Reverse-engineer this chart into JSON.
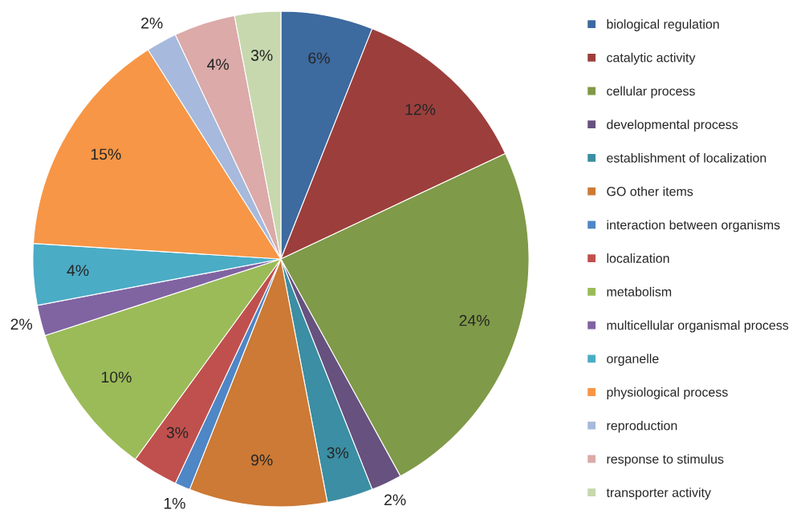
{
  "chart_data": {
    "type": "pie",
    "categories": [
      "biological regulation",
      "catalytic activity",
      "cellular process",
      "developmental process",
      "establishment of localization",
      "GO other items",
      "interaction between organisms",
      "localization",
      "metabolism",
      "multicellular organismal process",
      "organelle",
      "physiological process",
      "reproduction",
      "response to stimulus",
      "transporter activity"
    ],
    "values": [
      6,
      12,
      24,
      2,
      3,
      9,
      1,
      3,
      10,
      2,
      4,
      15,
      2,
      4,
      3
    ],
    "value_labels": [
      "6%",
      "12%",
      "24%",
      "2%",
      "3%",
      "9%",
      "1%",
      "3%",
      "10%",
      "2%",
      "4%",
      "15%",
      "2%",
      "4%",
      "3%"
    ],
    "colors": [
      "#3d6a9f",
      "#9c3f3c",
      "#7f9a48",
      "#67517f",
      "#3b8ea3",
      "#cc7a35",
      "#4f86c6",
      "#c0504d",
      "#9bbb59",
      "#8064a2",
      "#4bacc6",
      "#f79646",
      "#a7b9dc",
      "#dbaaa9",
      "#c7d8ae"
    ],
    "legend": "right"
  }
}
